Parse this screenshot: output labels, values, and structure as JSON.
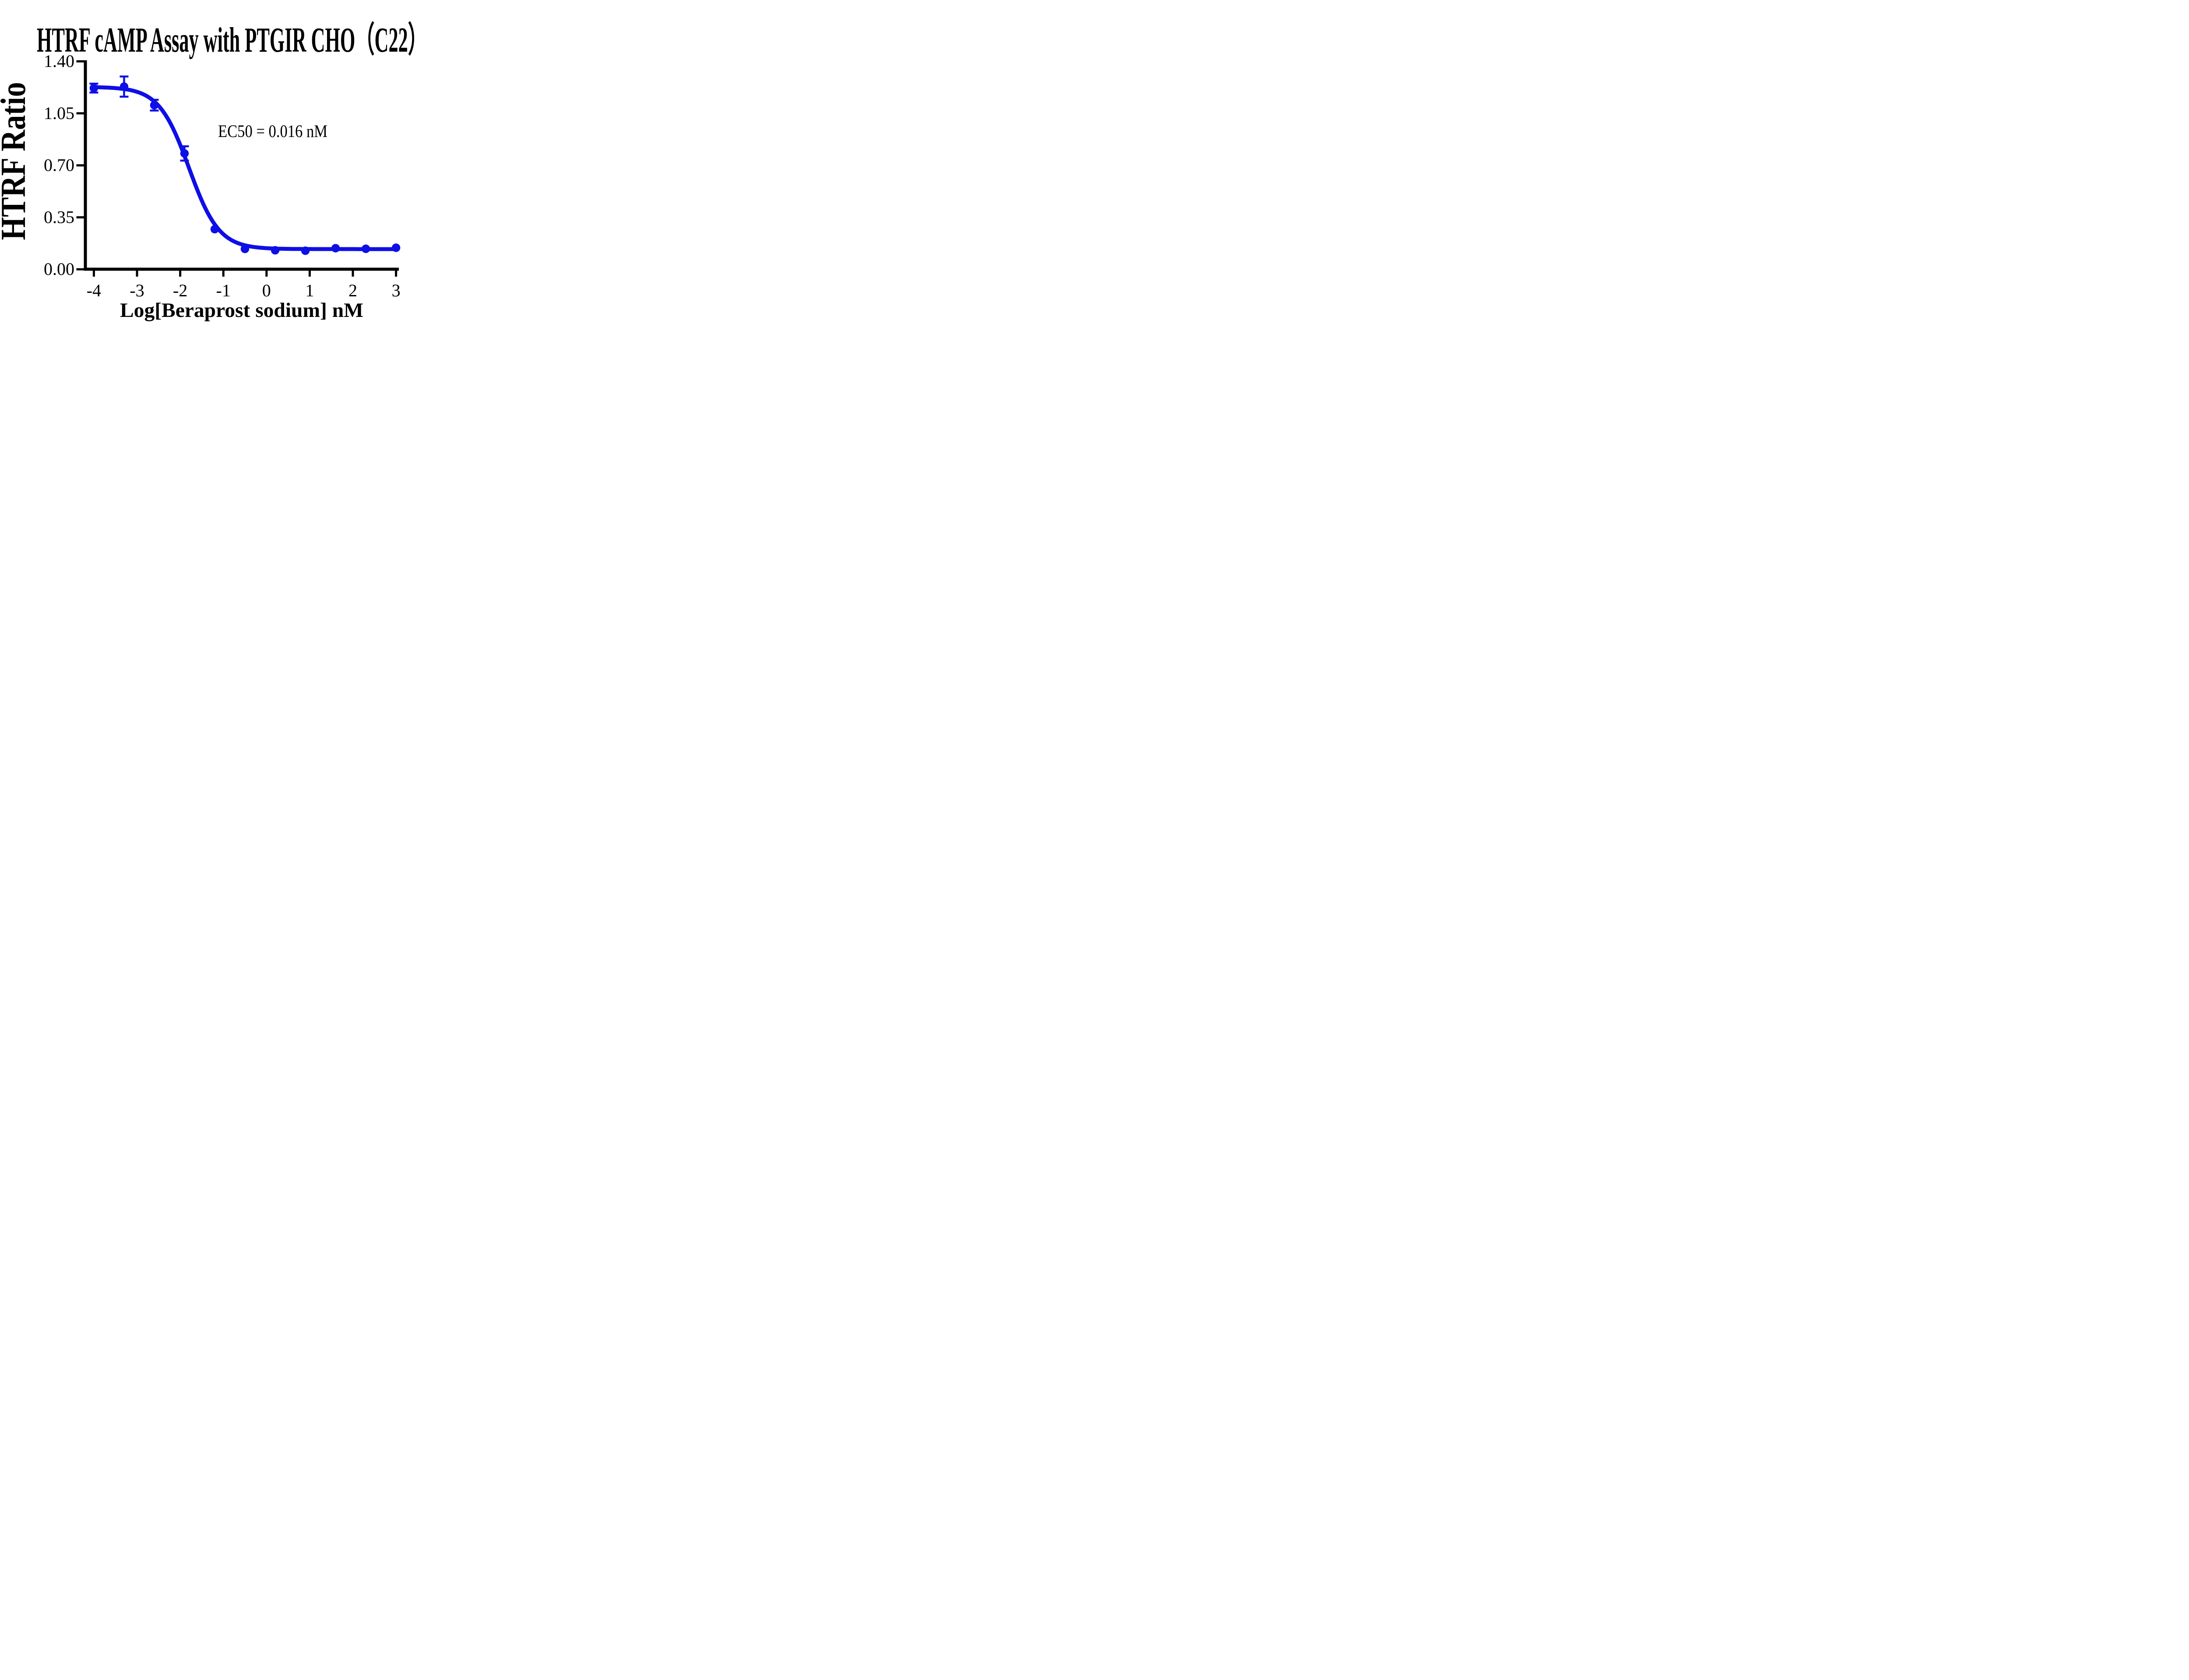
{
  "page": {
    "background": "#ffffff"
  },
  "chart_data": {
    "type": "scatter",
    "subtype": "dose-response-sigmoid-with-errorbars",
    "title": "HTRF cAMP Assay with PTGIR CHO（C22）",
    "xlabel": "Log[Beraprost sodium] nM",
    "ylabel": "HTRF Ratio",
    "annotation": "EC50 = 0.016 nM",
    "ec50_nM": 0.016,
    "grid": false,
    "legend": null,
    "axis_color": "#000000",
    "text_color": "#000000",
    "xlim": [
      -4.24,
      3.07
    ],
    "ylim": [
      0.0,
      1.4
    ],
    "x_ticks": [
      -4,
      -3,
      -2,
      -1,
      0,
      1,
      2,
      3
    ],
    "x_tick_labels": [
      "-4",
      "-3",
      "-2",
      "-1",
      "0",
      "1",
      "2",
      "3"
    ],
    "y_ticks": [
      1.4,
      1.05,
      0.7,
      0.35,
      0.0
    ],
    "y_tick_labels": [
      "1.40",
      "1.05",
      "0.70",
      "0.35",
      "0.00"
    ],
    "series": [
      {
        "name": "Beraprost sodium",
        "color": "#0E0EE6",
        "marker": "circle",
        "points": [
          {
            "x": -4.0,
            "y": 1.22,
            "err": 0.03
          },
          {
            "x": -3.3,
            "y": 1.23,
            "err": 0.068
          },
          {
            "x": -2.6,
            "y": 1.105,
            "err": 0.036
          },
          {
            "x": -1.9,
            "y": 0.78,
            "err": 0.048
          },
          {
            "x": -1.2,
            "y": 0.27,
            "err": null
          },
          {
            "x": -0.5,
            "y": 0.137,
            "err": null
          },
          {
            "x": 0.2,
            "y": 0.128,
            "err": null
          },
          {
            "x": 0.9,
            "y": 0.125,
            "err": null
          },
          {
            "x": 1.6,
            "y": 0.142,
            "err": null
          },
          {
            "x": 2.3,
            "y": 0.138,
            "err": null
          },
          {
            "x": 3.0,
            "y": 0.145,
            "err": null
          }
        ],
        "fit": {
          "model": "4PL",
          "top": 1.228,
          "bottom": 0.136,
          "log_ec50": -1.796,
          "hill": 1.25
        }
      }
    ]
  }
}
